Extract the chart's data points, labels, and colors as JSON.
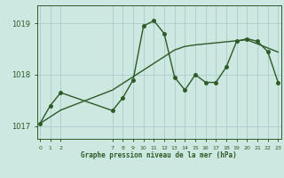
{
  "xlabel_label": "Graphe pression niveau de la mer (hPa)",
  "bg_color": "#cce8e0",
  "line_color": "#2d5a27",
  "grid_color": "#aacccc",
  "x_hours": [
    0,
    1,
    2,
    7,
    8,
    9,
    10,
    11,
    12,
    13,
    14,
    15,
    16,
    17,
    18,
    19,
    20,
    21,
    22,
    23
  ],
  "y_main": [
    1017.05,
    1017.4,
    1017.65,
    1017.3,
    1017.55,
    1017.9,
    1018.95,
    1019.05,
    1018.8,
    1017.95,
    1017.7,
    1018.0,
    1017.85,
    1017.85,
    1018.15,
    1018.65,
    1018.7,
    1018.65,
    1018.45,
    1017.85
  ],
  "trend_x": [
    0,
    1,
    2,
    7,
    8,
    9,
    10,
    11,
    12,
    13,
    14,
    15,
    16,
    17,
    18,
    19,
    20,
    21,
    22,
    23
  ],
  "trend_y": [
    1017.05,
    1017.18,
    1017.31,
    1017.7,
    1017.83,
    1017.96,
    1018.09,
    1018.22,
    1018.35,
    1018.48,
    1018.55,
    1018.58,
    1018.6,
    1018.62,
    1018.64,
    1018.66,
    1018.68,
    1018.6,
    1018.52,
    1018.44
  ],
  "ylim": [
    1016.75,
    1019.35
  ],
  "yticks": [
    1017,
    1018,
    1019
  ],
  "xticks": [
    0,
    1,
    2,
    7,
    8,
    9,
    10,
    11,
    12,
    13,
    14,
    15,
    16,
    17,
    18,
    19,
    20,
    21,
    22,
    23
  ],
  "marker_size": 2.5,
  "line_width": 1.0,
  "xlim": [
    -0.3,
    23.3
  ]
}
